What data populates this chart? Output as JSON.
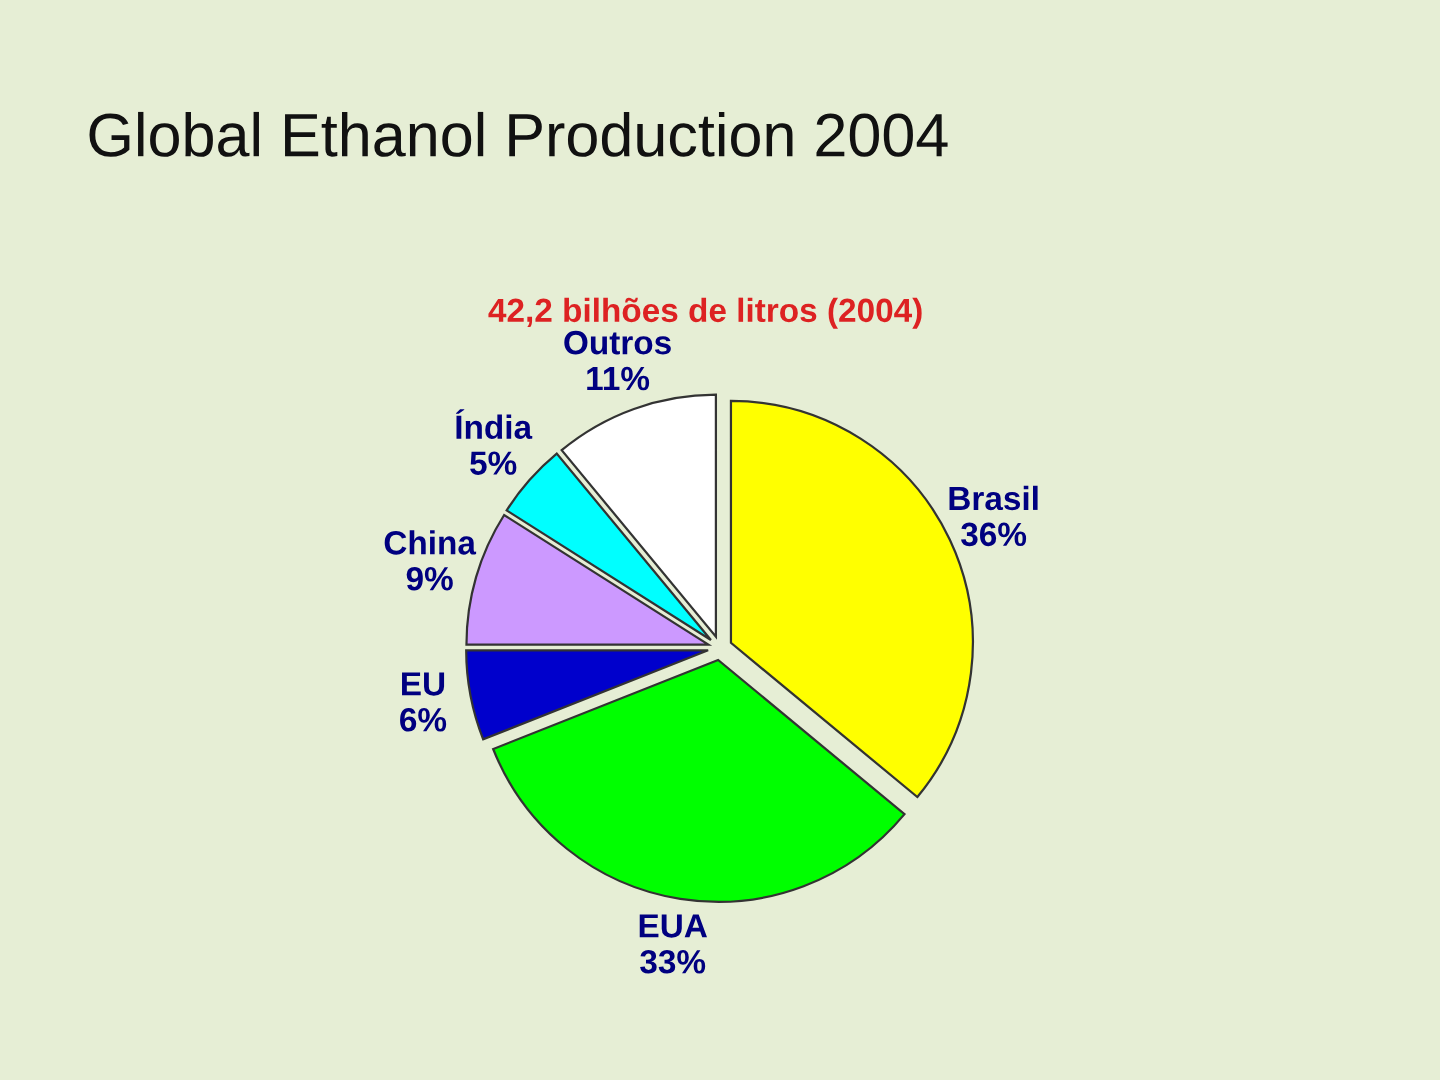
{
  "chart_data": {
    "type": "pie",
    "title": "Global Ethanol Production 2004",
    "subtitle": "42,2 bilhões de litros (2004)",
    "categories": [
      "Brasil",
      "EUA",
      "EU",
      "China",
      "Índia",
      "Outros"
    ],
    "values": [
      36,
      33,
      6,
      9,
      5,
      11
    ],
    "value_labels": [
      "36%",
      "33%",
      "6%",
      "9%",
      "5%",
      "11%"
    ],
    "colors": [
      "#ffff00",
      "#00ff00",
      "#0000cc",
      "#cc99ff",
      "#00ffff",
      "#ffffff"
    ],
    "legend": false
  }
}
